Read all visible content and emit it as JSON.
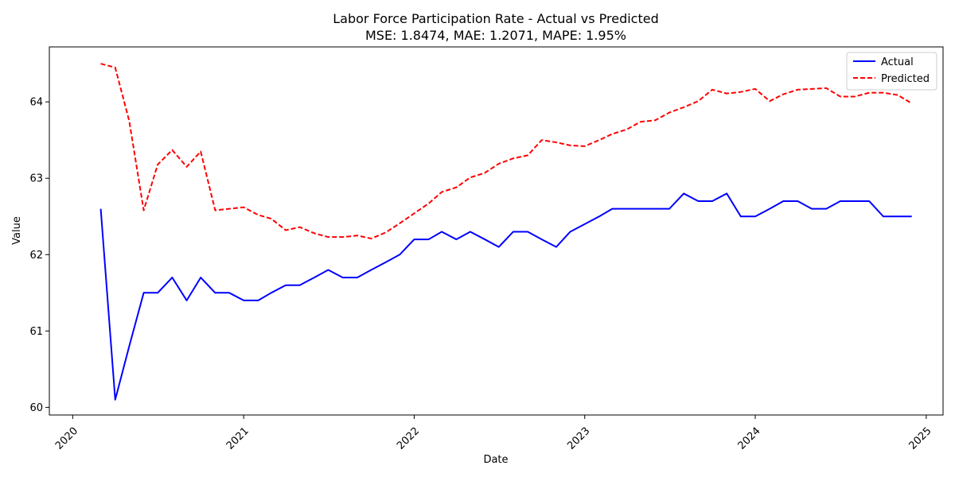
{
  "chart_data": {
    "type": "line",
    "title": "Labor Force Participation Rate - Actual vs Predicted",
    "subtitle": "MSE: 1.8474, MAE: 1.2071, MAPE: 1.95%",
    "xlabel": "Date",
    "ylabel": "Value",
    "legend_position": "top-right",
    "grid": false,
    "xlim": [
      "2019-11-12",
      "2025-02-06"
    ],
    "ylim": [
      59.9,
      64.72
    ],
    "x_ticks": [
      "2020",
      "2021",
      "2022",
      "2023",
      "2024",
      "2025"
    ],
    "y_ticks": [
      "60",
      "61",
      "62",
      "63",
      "64"
    ],
    "x": [
      "2020-03",
      "2020-04",
      "2020-05",
      "2020-06",
      "2020-07",
      "2020-08",
      "2020-09",
      "2020-10",
      "2020-11",
      "2020-12",
      "2021-01",
      "2021-02",
      "2021-03",
      "2021-04",
      "2021-05",
      "2021-06",
      "2021-07",
      "2021-08",
      "2021-09",
      "2021-10",
      "2021-11",
      "2021-12",
      "2022-01",
      "2022-02",
      "2022-03",
      "2022-04",
      "2022-05",
      "2022-06",
      "2022-07",
      "2022-08",
      "2022-09",
      "2022-10",
      "2022-11",
      "2022-12",
      "2023-01",
      "2023-02",
      "2023-03",
      "2023-04",
      "2023-05",
      "2023-06",
      "2023-07",
      "2023-08",
      "2023-09",
      "2023-10",
      "2023-11",
      "2023-12",
      "2024-01",
      "2024-02",
      "2024-03",
      "2024-04",
      "2024-05",
      "2024-06",
      "2024-07",
      "2024-08",
      "2024-09",
      "2024-10",
      "2024-11",
      "2024-12"
    ],
    "series": [
      {
        "name": "Actual",
        "color": "#0000ff",
        "style": "solid",
        "values": [
          62.6,
          60.1,
          60.8,
          61.5,
          61.5,
          61.7,
          61.4,
          61.7,
          61.5,
          61.5,
          61.4,
          61.4,
          61.5,
          61.6,
          61.6,
          61.7,
          61.8,
          61.7,
          61.7,
          61.8,
          61.9,
          62.0,
          62.2,
          62.2,
          62.3,
          62.2,
          62.3,
          62.2,
          62.1,
          62.3,
          62.3,
          62.2,
          62.1,
          62.3,
          62.4,
          62.5,
          62.6,
          62.6,
          62.6,
          62.6,
          62.6,
          62.8,
          62.7,
          62.7,
          62.8,
          62.5,
          62.5,
          62.6,
          62.7,
          62.7,
          62.6,
          62.6,
          62.7,
          62.7,
          62.7,
          62.5,
          62.5,
          62.5
        ]
      },
      {
        "name": "Predicted",
        "color": "#ff0000",
        "style": "dashed",
        "values": [
          64.5,
          64.45,
          63.75,
          62.58,
          63.18,
          63.37,
          63.15,
          63.35,
          62.58,
          62.6,
          62.62,
          62.52,
          62.47,
          62.32,
          62.36,
          62.28,
          62.23,
          62.23,
          62.25,
          62.21,
          62.29,
          62.41,
          62.54,
          62.67,
          62.82,
          62.88,
          63.01,
          63.07,
          63.19,
          63.26,
          63.3,
          63.5,
          63.47,
          63.43,
          63.42,
          63.5,
          63.58,
          63.64,
          63.74,
          63.76,
          63.86,
          63.93,
          64.01,
          64.16,
          64.11,
          64.13,
          64.17,
          64.01,
          64.1,
          64.16,
          64.17,
          64.18,
          64.07,
          64.07,
          64.12,
          64.12,
          64.09,
          63.98
        ]
      }
    ]
  }
}
